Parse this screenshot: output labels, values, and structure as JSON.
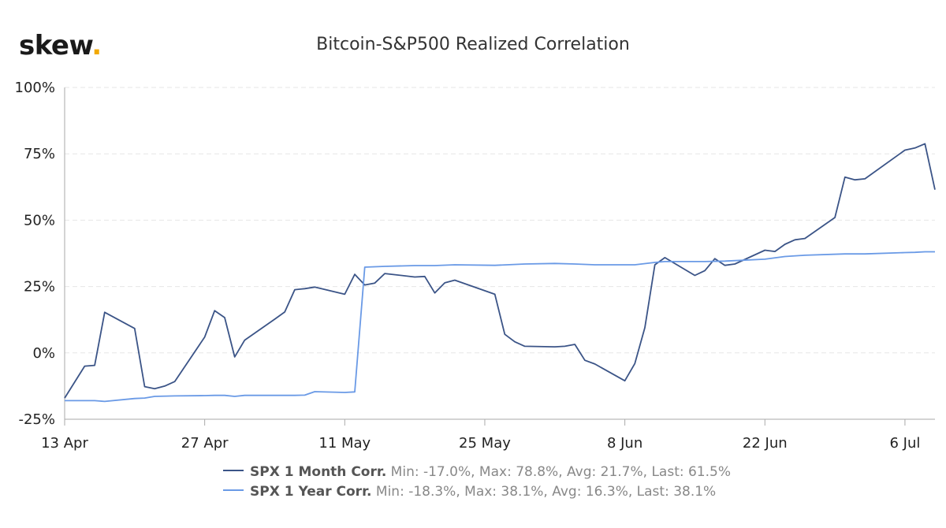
{
  "brand": {
    "logo_text": "skew",
    "logo_dot": "."
  },
  "colors": {
    "month": "#3b5487",
    "year": "#6a9ae6",
    "grid": "#e6e6e6",
    "axis": "#aaaaaa",
    "logo_dot": "#f2a900"
  },
  "legend": {
    "month": {
      "name": "SPX 1 Month Corr.",
      "stats": " Min: -17.0%, Max: 78.8%, Avg: 21.7%, Last: 61.5%"
    },
    "year": {
      "name": "SPX 1 Year Corr.",
      "stats": " Min: -18.3%, Max: 38.1%, Avg: 16.3%, Last: 38.1%"
    }
  },
  "chart_data": {
    "type": "line",
    "title": "Bitcoin-S&P500 Realized Correlation",
    "xlabel": "",
    "ylabel": "",
    "ylim": [
      -25,
      100
    ],
    "y_ticks": [
      {
        "value": 100,
        "label": "100%"
      },
      {
        "value": 75,
        "label": "75%"
      },
      {
        "value": 50,
        "label": "50%"
      },
      {
        "value": 25,
        "label": "25%"
      },
      {
        "value": 0,
        "label": "0%"
      },
      {
        "value": -25,
        "label": "-25%"
      }
    ],
    "xlim": [
      "2020-04-13",
      "2020-07-09"
    ],
    "x_ticks": [
      {
        "date": "2020-04-13",
        "label": "13 Apr"
      },
      {
        "date": "2020-04-27",
        "label": "27 Apr"
      },
      {
        "date": "2020-05-11",
        "label": "11 May"
      },
      {
        "date": "2020-05-25",
        "label": "25 May"
      },
      {
        "date": "2020-06-08",
        "label": "8 Jun"
      },
      {
        "date": "2020-06-22",
        "label": "22 Jun"
      },
      {
        "date": "2020-07-06",
        "label": "6 Jul"
      }
    ],
    "grid": true,
    "legend_position": "bottom",
    "series": [
      {
        "name": "SPX 1 Month Corr.",
        "color": "#3b5487",
        "points": [
          [
            "2020-04-13",
            -17.0
          ],
          [
            "2020-04-15",
            -5.0
          ],
          [
            "2020-04-16",
            -4.7
          ],
          [
            "2020-04-17",
            15.3
          ],
          [
            "2020-04-20",
            9.2
          ],
          [
            "2020-04-21",
            -12.7
          ],
          [
            "2020-04-22",
            -13.5
          ],
          [
            "2020-04-23",
            -12.5
          ],
          [
            "2020-04-24",
            -10.8
          ],
          [
            "2020-04-27",
            6.0
          ],
          [
            "2020-04-28",
            15.9
          ],
          [
            "2020-04-29",
            13.3
          ],
          [
            "2020-04-30",
            -1.5
          ],
          [
            "2020-05-01",
            4.8
          ],
          [
            "2020-05-04",
            12.7
          ],
          [
            "2020-05-05",
            15.4
          ],
          [
            "2020-05-06",
            23.8
          ],
          [
            "2020-05-07",
            24.2
          ],
          [
            "2020-05-08",
            24.8
          ],
          [
            "2020-05-11",
            22.1
          ],
          [
            "2020-05-12",
            29.6
          ],
          [
            "2020-05-13",
            25.6
          ],
          [
            "2020-05-14",
            26.3
          ],
          [
            "2020-05-15",
            29.9
          ],
          [
            "2020-05-18",
            28.6
          ],
          [
            "2020-05-19",
            28.8
          ],
          [
            "2020-05-20",
            22.6
          ],
          [
            "2020-05-21",
            26.4
          ],
          [
            "2020-05-22",
            27.4
          ],
          [
            "2020-05-26",
            22.1
          ],
          [
            "2020-05-27",
            7.0
          ],
          [
            "2020-05-28",
            4.2
          ],
          [
            "2020-05-29",
            2.5
          ],
          [
            "2020-06-01",
            2.3
          ],
          [
            "2020-06-02",
            2.5
          ],
          [
            "2020-06-03",
            3.2
          ],
          [
            "2020-06-04",
            -2.8
          ],
          [
            "2020-06-05",
            -4.2
          ],
          [
            "2020-06-08",
            -10.5
          ],
          [
            "2020-06-09",
            -4.0
          ],
          [
            "2020-06-10",
            9.5
          ],
          [
            "2020-06-11",
            33.2
          ],
          [
            "2020-06-12",
            35.9
          ],
          [
            "2020-06-15",
            29.2
          ],
          [
            "2020-06-16",
            31.0
          ],
          [
            "2020-06-17",
            35.5
          ],
          [
            "2020-06-18",
            33.0
          ],
          [
            "2020-06-19",
            33.5
          ],
          [
            "2020-06-22",
            38.7
          ],
          [
            "2020-06-23",
            38.2
          ],
          [
            "2020-06-24",
            40.9
          ],
          [
            "2020-06-25",
            42.6
          ],
          [
            "2020-06-26",
            43.1
          ],
          [
            "2020-06-29",
            51.0
          ],
          [
            "2020-06-30",
            66.2
          ],
          [
            "2020-07-01",
            65.2
          ],
          [
            "2020-07-02",
            65.6
          ],
          [
            "2020-07-06",
            76.4
          ],
          [
            "2020-07-07",
            77.2
          ],
          [
            "2020-07-08",
            78.8
          ],
          [
            "2020-07-09",
            61.5
          ]
        ]
      },
      {
        "name": "SPX 1 Year Corr.",
        "color": "#6a9ae6",
        "points": [
          [
            "2020-04-13",
            -18.0
          ],
          [
            "2020-04-16",
            -18.0
          ],
          [
            "2020-04-17",
            -18.3
          ],
          [
            "2020-04-20",
            -17.2
          ],
          [
            "2020-04-21",
            -17.0
          ],
          [
            "2020-04-22",
            -16.4
          ],
          [
            "2020-04-24",
            -16.2
          ],
          [
            "2020-04-27",
            -16.1
          ],
          [
            "2020-04-28",
            -16.0
          ],
          [
            "2020-04-29",
            -16.0
          ],
          [
            "2020-04-30",
            -16.4
          ],
          [
            "2020-05-01",
            -16.0
          ],
          [
            "2020-05-04",
            -16.0
          ],
          [
            "2020-05-06",
            -16.0
          ],
          [
            "2020-05-07",
            -15.9
          ],
          [
            "2020-05-08",
            -14.6
          ],
          [
            "2020-05-11",
            -14.9
          ],
          [
            "2020-05-12",
            -14.7
          ],
          [
            "2020-05-13",
            32.3
          ],
          [
            "2020-05-15",
            32.6
          ],
          [
            "2020-05-18",
            32.9
          ],
          [
            "2020-05-20",
            32.9
          ],
          [
            "2020-05-22",
            33.2
          ],
          [
            "2020-05-26",
            33.0
          ],
          [
            "2020-05-29",
            33.5
          ],
          [
            "2020-06-01",
            33.7
          ],
          [
            "2020-06-03",
            33.5
          ],
          [
            "2020-06-05",
            33.2
          ],
          [
            "2020-06-09",
            33.2
          ],
          [
            "2020-06-11",
            34.1
          ],
          [
            "2020-06-12",
            34.4
          ],
          [
            "2020-06-16",
            34.4
          ],
          [
            "2020-06-18",
            34.6
          ],
          [
            "2020-06-22",
            35.3
          ],
          [
            "2020-06-24",
            36.3
          ],
          [
            "2020-06-26",
            36.8
          ],
          [
            "2020-06-30",
            37.3
          ],
          [
            "2020-07-02",
            37.3
          ],
          [
            "2020-07-06",
            37.8
          ],
          [
            "2020-07-07",
            37.9
          ],
          [
            "2020-07-08",
            38.1
          ],
          [
            "2020-07-09",
            38.1
          ]
        ]
      }
    ]
  }
}
